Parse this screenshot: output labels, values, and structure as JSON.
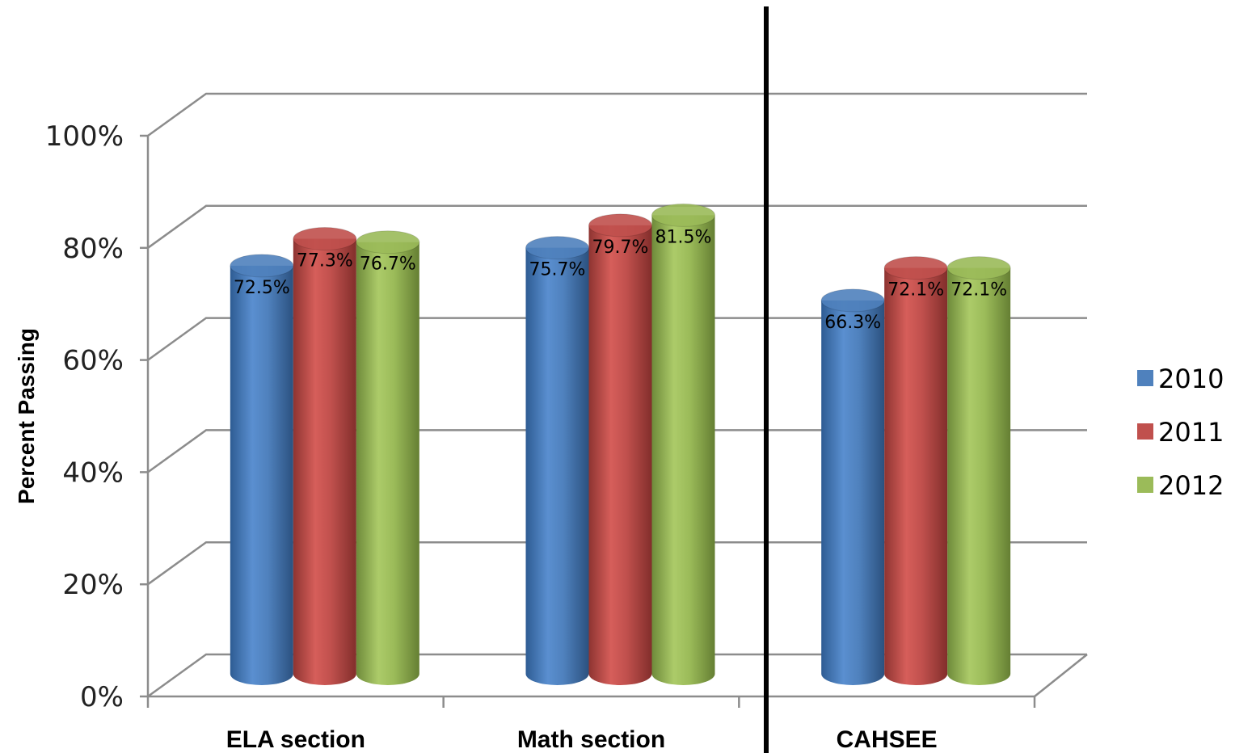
{
  "chart_data": {
    "type": "bar",
    "style": "3d-cylinder",
    "ylabel": "Percent Passing",
    "ylim": [
      0,
      100
    ],
    "yticks": [
      "0%",
      "20%",
      "40%",
      "60%",
      "80%",
      "100%"
    ],
    "categories": [
      "ELA section",
      "Math section",
      "CAHSEE"
    ],
    "series": [
      {
        "name": "2010",
        "color": "#4F81BD",
        "values": [
          72.5,
          75.7,
          66.3
        ],
        "labels": [
          "72.5%",
          "75.7%",
          "66.3%"
        ]
      },
      {
        "name": "2011",
        "color": "#C0504D",
        "values": [
          77.3,
          79.7,
          72.1
        ],
        "labels": [
          "77.3%",
          "79.7%",
          "72.1%"
        ]
      },
      {
        "name": "2012",
        "color": "#9BBB59",
        "values": [
          76.7,
          81.5,
          72.1
        ],
        "labels": [
          "76.7%",
          "81.5%",
          "72.1%"
        ]
      }
    ],
    "grid": true,
    "legend": "right",
    "separator": "vertical line between Math section and CAHSEE"
  }
}
